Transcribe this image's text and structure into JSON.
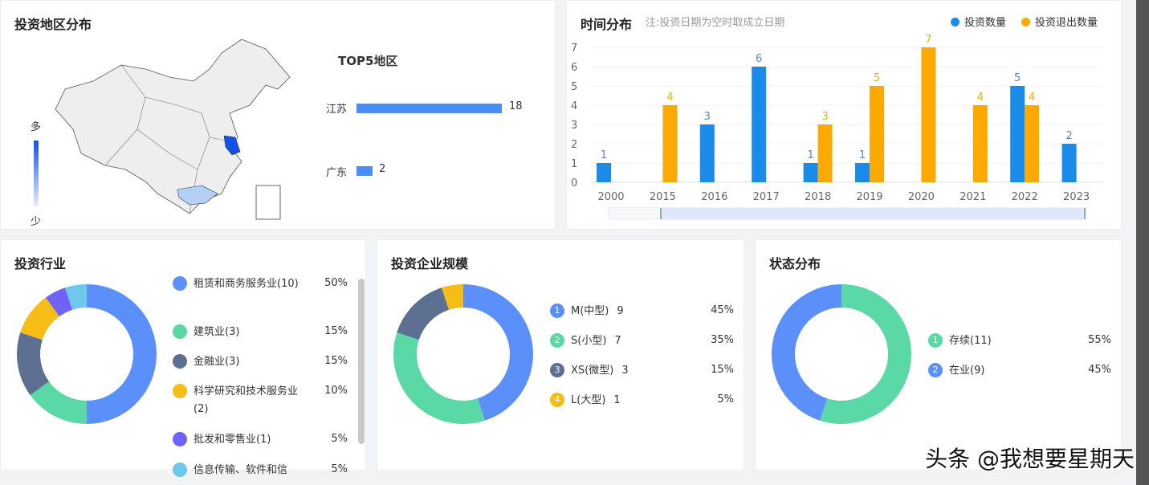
{
  "map_panel": {
    "title": "投资地区分布",
    "legend_high": "多",
    "legend_low": "少",
    "top5_title": "TOP5地区",
    "regions": [
      {
        "name": "江苏",
        "value": 18
      },
      {
        "name": "广东",
        "value": 2
      }
    ]
  },
  "time_panel": {
    "title": "时间分布",
    "note": "注:投资日期为空时取成立日期",
    "legend": [
      {
        "name": "投资数量",
        "color": "#1b8bea"
      },
      {
        "name": "投资退出数量",
        "color": "#fbaa03"
      }
    ]
  },
  "chart_data": [
    {
      "type": "bar",
      "categories": [
        "2000",
        "2015",
        "2016",
        "2017",
        "2018",
        "2019",
        "2020",
        "2021",
        "2022",
        "2023"
      ],
      "series": [
        {
          "name": "投资数量",
          "color": "#1b8bea",
          "values": [
            1,
            0,
            3,
            6,
            1,
            1,
            0,
            0,
            5,
            2
          ]
        },
        {
          "name": "投资退出数量",
          "color": "#fbaa03",
          "values": [
            0,
            4,
            0,
            0,
            3,
            5,
            7,
            4,
            4,
            0
          ]
        }
      ],
      "ylim": [
        0,
        7
      ],
      "yticks": [
        "0",
        "1",
        "2",
        "3",
        "4",
        "5",
        "6",
        "7"
      ],
      "legend": "top-right",
      "grid": true
    },
    {
      "type": "pie",
      "title": "投资行业",
      "donut": true,
      "slices": [
        {
          "label": "租赁和商务服务业(10)",
          "value": 50,
          "pct": "50%",
          "color": "#5b8ff9"
        },
        {
          "label": "建筑业(3)",
          "value": 15,
          "pct": "15%",
          "color": "#5ad8a6"
        },
        {
          "label": "金融业(3)",
          "value": 15,
          "pct": "15%",
          "color": "#5d7092"
        },
        {
          "label": "科学研究和技术服务业(2)",
          "value": 10,
          "pct": "10%",
          "color": "#f6bd16"
        },
        {
          "label": "批发和零售业(1)",
          "value": 5,
          "pct": "5%",
          "color": "#7262fd"
        },
        {
          "label": "信息传输、软件和信",
          "value": 5,
          "pct": "5%",
          "color": "#6dc8ec"
        }
      ]
    },
    {
      "type": "pie",
      "title": "投资企业规模",
      "donut": true,
      "slices": [
        {
          "label": "M(中型)",
          "count": "9",
          "value": 45,
          "pct": "45%",
          "color": "#5b8ff9"
        },
        {
          "label": "S(小型)",
          "count": "7",
          "value": 35,
          "pct": "35%",
          "color": "#5ad8a6"
        },
        {
          "label": "XS(微型)",
          "count": "3",
          "value": 15,
          "pct": "15%",
          "color": "#5d7092"
        },
        {
          "label": "L(大型)",
          "count": "1",
          "value": 5,
          "pct": "5%",
          "color": "#f6bd16"
        }
      ]
    },
    {
      "type": "pie",
      "title": "状态分布",
      "donut": true,
      "slices": [
        {
          "label": "存续(11)",
          "value": 55,
          "pct": "55%",
          "color": "#5ad8a6"
        },
        {
          "label": "在业(9)",
          "value": 45,
          "pct": "45%",
          "color": "#5b8ff9"
        }
      ]
    }
  ],
  "watermark": "头条 @我想要星期天"
}
